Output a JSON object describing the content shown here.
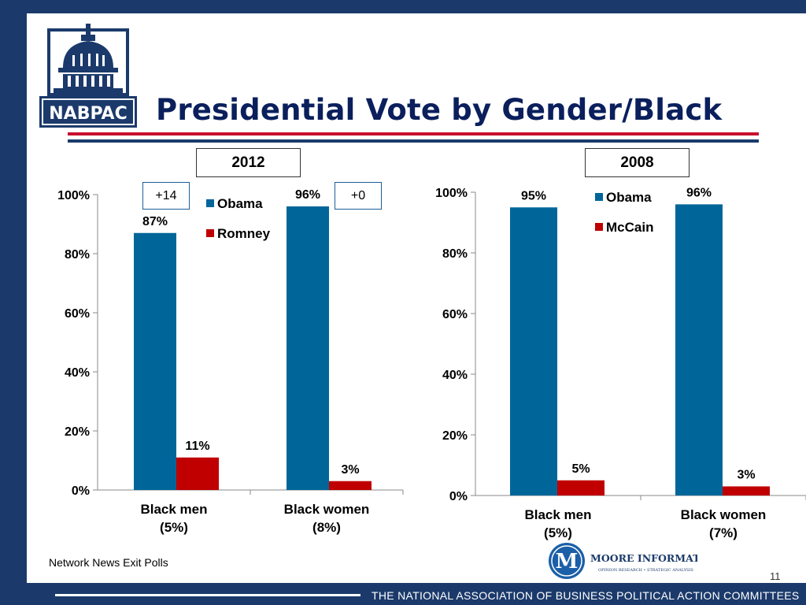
{
  "title": "Presidential Vote by Gender/Black",
  "logo": {
    "text": "NABPAC"
  },
  "source": "Network News Exit Polls",
  "page_number": "11",
  "footer": "THE NATIONAL ASSOCIATION OF BUSINESS POLITICAL ACTION COMMITTEES",
  "brand": {
    "name": "MOORE INFORMATION",
    "tagline": "OPINION RESEARCH • STRATEGIC ANALYSIS",
    "initial": "M"
  },
  "colors": {
    "obama": "#006699",
    "opponent": "#c00000",
    "navy": "#1b3a6b",
    "rule_red": "#c8102e"
  },
  "chart_data": [
    {
      "type": "bar",
      "title": "2012",
      "categories": [
        "Black men (5%)",
        "Black women (8%)"
      ],
      "category_lines": [
        [
          "Black men",
          "(5%)"
        ],
        [
          "Black women",
          "(8%)"
        ]
      ],
      "series": [
        {
          "name": "Obama",
          "values": [
            87,
            96
          ]
        },
        {
          "name": "Romney",
          "values": [
            11,
            3
          ]
        }
      ],
      "annotations": [
        "+14",
        "+0"
      ],
      "yticks": [
        "0%",
        "20%",
        "40%",
        "60%",
        "80%",
        "100%"
      ],
      "ylim": [
        0,
        100
      ],
      "value_suffix": "%",
      "legend": "top-center"
    },
    {
      "type": "bar",
      "title": "2008",
      "categories": [
        "Black men (5%)",
        "Black women (7%)"
      ],
      "category_lines": [
        [
          "Black men",
          "(5%)"
        ],
        [
          "Black women",
          "(7%)"
        ]
      ],
      "series": [
        {
          "name": "Obama",
          "values": [
            95,
            96
          ]
        },
        {
          "name": "McCain",
          "values": [
            5,
            3
          ]
        }
      ],
      "yticks": [
        "0%",
        "20%",
        "40%",
        "60%",
        "80%",
        "100%"
      ],
      "ylim": [
        0,
        100
      ],
      "value_suffix": "%",
      "legend": "top-center"
    }
  ]
}
